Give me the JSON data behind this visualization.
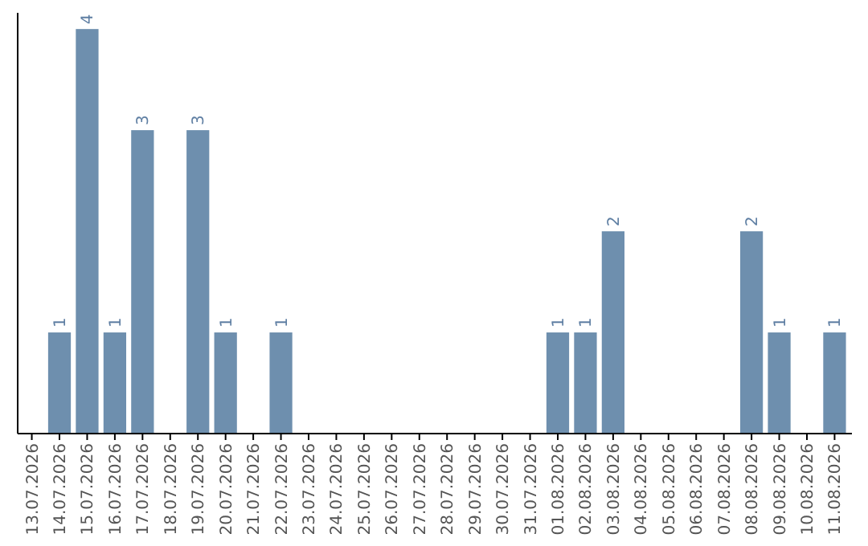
{
  "chart_data": {
    "type": "bar",
    "categories": [
      "13.07.2026",
      "14.07.2026",
      "15.07.2026",
      "16.07.2026",
      "17.07.2026",
      "18.07.2026",
      "19.07.2026",
      "20.07.2026",
      "21.07.2026",
      "22.07.2026",
      "23.07.2026",
      "24.07.2026",
      "25.07.2026",
      "26.07.2026",
      "27.07.2026",
      "28.07.2026",
      "29.07.2026",
      "30.07.2026",
      "31.07.2026",
      "01.08.2026",
      "02.08.2026",
      "03.08.2026",
      "04.08.2026",
      "05.08.2026",
      "06.08.2026",
      "07.08.2026",
      "08.08.2026",
      "09.08.2026",
      "10.08.2026",
      "11.08.2026"
    ],
    "values": [
      0,
      1,
      4,
      1,
      3,
      0,
      3,
      1,
      0,
      1,
      0,
      0,
      0,
      0,
      0,
      0,
      0,
      0,
      0,
      1,
      1,
      2,
      0,
      0,
      0,
      0,
      2,
      1,
      0,
      1
    ],
    "value_labels": [
      null,
      "1",
      "4",
      "1",
      "3",
      null,
      "3",
      "1",
      null,
      "1",
      null,
      null,
      null,
      null,
      null,
      null,
      null,
      null,
      null,
      "1",
      "1",
      "2",
      null,
      null,
      null,
      null,
      "2",
      "1",
      null,
      "1"
    ],
    "color": "#6e8fae",
    "tick_labels": "x",
    "grid": false
  }
}
